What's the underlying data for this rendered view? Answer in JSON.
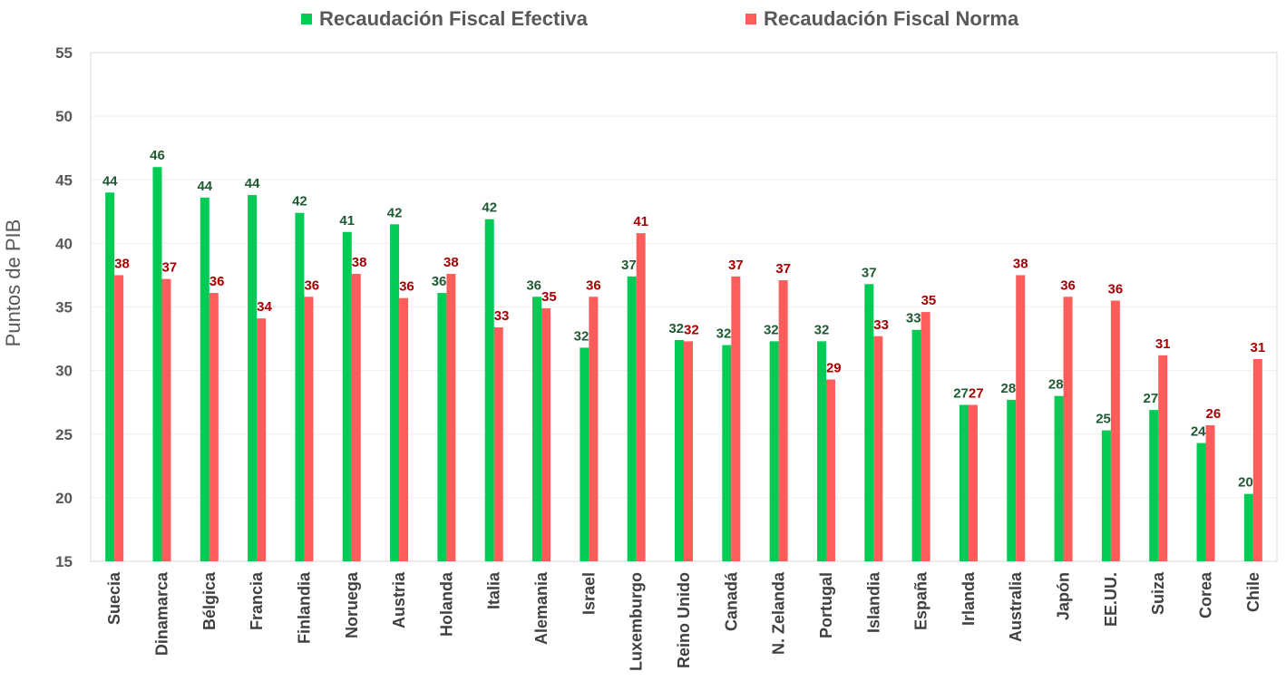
{
  "chart_data": {
    "type": "bar",
    "title": "",
    "xlabel": "",
    "ylabel": "Puntos de PIB",
    "ylim": [
      15,
      55
    ],
    "yticks": [
      15,
      20,
      25,
      30,
      35,
      40,
      45,
      50,
      55
    ],
    "grid": true,
    "legend_position": "top",
    "categories": [
      "Suecia",
      "Dinamarca",
      "Bélgica",
      "Francia",
      "Finlandia",
      "Noruega",
      "Austria",
      "Holanda",
      "Italia",
      "Alemania",
      "Israel",
      "Luxemburgo",
      "Reino Unido",
      "Canadá",
      "N. Zelanda",
      "Portugal",
      "Islandia",
      "España",
      "Irlanda",
      "Australia",
      "Japón",
      "EE.UU.",
      "Suiza",
      "Corea",
      "Chile"
    ],
    "series": [
      {
        "name": "Recaudación Fiscal Efectiva",
        "color": "#00cc55",
        "label_color": "#1e5a32",
        "values": [
          44.0,
          46.0,
          43.6,
          43.8,
          42.4,
          40.9,
          41.5,
          36.1,
          41.9,
          35.8,
          31.8,
          37.4,
          32.4,
          32.0,
          32.3,
          32.3,
          36.8,
          33.2,
          27.3,
          27.7,
          28.0,
          25.3,
          26.9,
          24.3,
          20.3
        ],
        "labels": [
          "44",
          "46",
          "44",
          "44",
          "42",
          "41",
          "42",
          "36",
          "42",
          "36",
          "32",
          "37",
          "32",
          "32",
          "32",
          "32",
          "37",
          "33",
          "27",
          "28",
          "28",
          "25",
          "27",
          "24",
          "20"
        ]
      },
      {
        "name": "Recaudación Fiscal Norma",
        "color": "#ff5c5c",
        "label_color": "#a50000",
        "values": [
          37.5,
          37.2,
          36.1,
          34.1,
          35.8,
          37.6,
          35.7,
          37.6,
          33.4,
          34.9,
          35.8,
          40.8,
          32.3,
          37.4,
          37.1,
          29.3,
          32.7,
          34.6,
          27.3,
          37.5,
          35.8,
          35.5,
          31.2,
          25.7,
          30.9
        ],
        "labels": [
          "38",
          "37",
          "36",
          "34",
          "36",
          "38",
          "36",
          "38",
          "33",
          "35",
          "36",
          "41",
          "32",
          "37",
          "37",
          "29",
          "33",
          "35",
          "27",
          "38",
          "36",
          "36",
          "31",
          "26",
          "31"
        ]
      }
    ]
  }
}
